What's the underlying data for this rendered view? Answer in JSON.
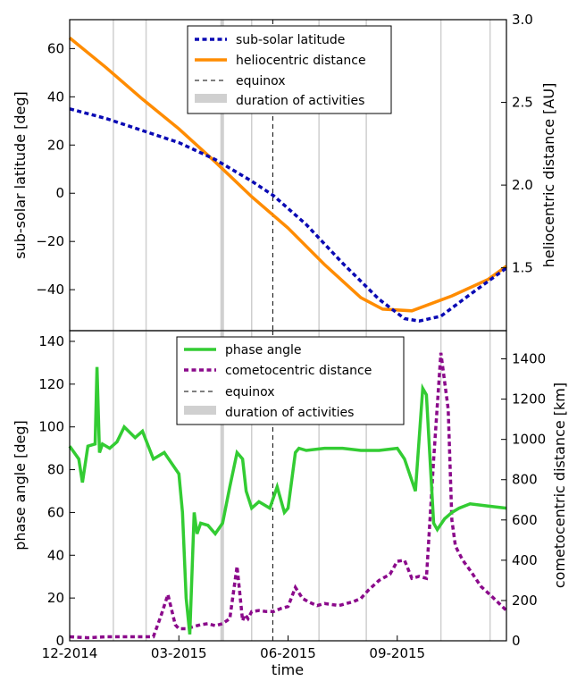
{
  "chart_data": [
    {
      "type": "line",
      "xlabel": "",
      "ylabel": "sub-solar latitude [deg]",
      "y2label": "heliocentric distance [AU]",
      "ylim": [
        -57,
        72
      ],
      "y2lim": [
        1.12,
        3.0
      ],
      "yticks": [
        "60",
        "40",
        "20",
        "0",
        "−20",
        "−40"
      ],
      "y2ticks": [
        "3.0",
        "2.5",
        "2.0",
        "1.5"
      ],
      "legend_placement": "top-center",
      "equinox_month": 5.58,
      "activity_bands": [
        [
          4.14,
          4.24
        ]
      ],
      "gridlines_months": [
        1.2,
        2.1,
        5.0,
        6.85,
        8.15,
        10.2,
        11.55
      ],
      "series": [
        {
          "name": "sub-solar latitude",
          "axis": "left",
          "color": "#0a0ab4",
          "style": "dotted",
          "x": [
            0,
            1,
            2,
            3,
            4,
            5,
            5.6,
            6.5,
            7.5,
            8.5,
            9.2,
            9.6,
            10.2,
            11,
            12
          ],
          "y": [
            35,
            31,
            26,
            21,
            14,
            5,
            -1,
            -13,
            -29,
            -44,
            -52,
            -53,
            -51,
            -42,
            -31
          ]
        },
        {
          "name": "heliocentric distance",
          "axis": "right",
          "color": "#ff8c00",
          "style": "solid",
          "x": [
            0,
            1,
            2,
            3,
            4,
            5,
            6,
            7,
            8,
            8.6,
            9.4,
            10.5,
            11.5,
            12
          ],
          "y": [
            2.89,
            2.71,
            2.52,
            2.34,
            2.14,
            1.93,
            1.74,
            1.52,
            1.32,
            1.25,
            1.24,
            1.33,
            1.43,
            1.51
          ]
        }
      ]
    },
    {
      "type": "line",
      "xlabel": "time",
      "ylabel": "phase angle [deg]",
      "y2label": "cometocentric distance [km]",
      "ylim": [
        0,
        145
      ],
      "y2lim": [
        0,
        1540
      ],
      "yticks": [
        "140",
        "120",
        "100",
        "80",
        "60",
        "40",
        "20",
        "0"
      ],
      "y2ticks": [
        "1400",
        "1200",
        "1000",
        "800",
        "600",
        "400",
        "200",
        "0"
      ],
      "xticks": [
        "12-2014",
        "03-2015",
        "06-2015",
        "09-2015"
      ],
      "xlim_months": [
        0,
        12
      ],
      "legend_placement": "top-center",
      "equinox_month": 5.58,
      "activity_bands": [
        [
          4.14,
          4.24
        ]
      ],
      "gridlines_months": [
        1.2,
        2.1,
        5.0,
        6.85,
        8.15,
        10.2,
        11.55
      ],
      "series": [
        {
          "name": "phase angle",
          "axis": "left",
          "color": "#33cc33",
          "style": "solid",
          "x": [
            0,
            0.25,
            0.35,
            0.5,
            0.7,
            0.75,
            0.82,
            0.9,
            1.1,
            1.3,
            1.5,
            1.8,
            2.0,
            2.3,
            2.6,
            3.0,
            3.1,
            3.2,
            3.3,
            3.42,
            3.5,
            3.6,
            3.8,
            4.0,
            4.2,
            4.4,
            4.6,
            4.75,
            4.85,
            5.0,
            5.2,
            5.5,
            5.7,
            5.9,
            6.0,
            6.2,
            6.3,
            6.5,
            7.0,
            7.5,
            8.0,
            8.5,
            9.0,
            9.2,
            9.5,
            9.7,
            9.8,
            10.0,
            10.1,
            10.3,
            10.5,
            10.7,
            11.0,
            11.5,
            12.0
          ],
          "y": [
            91,
            85,
            74,
            91,
            92,
            128,
            88,
            92,
            90,
            93,
            100,
            95,
            98,
            85,
            88,
            78,
            60,
            20,
            3,
            60,
            50,
            55,
            54,
            50,
            55,
            72,
            88,
            85,
            70,
            62,
            65,
            62,
            72,
            60,
            62,
            88,
            90,
            89,
            90,
            90,
            89,
            89,
            90,
            85,
            70,
            118,
            115,
            55,
            52,
            57,
            60,
            62,
            64,
            63,
            62
          ]
        },
        {
          "name": "cometocentric distance",
          "axis": "right",
          "color": "#8b0a8b",
          "style": "dotted",
          "x": [
            0,
            0.5,
            1.0,
            1.5,
            2.0,
            2.3,
            2.5,
            2.7,
            2.9,
            3.0,
            3.2,
            3.4,
            3.6,
            3.8,
            4.0,
            4.2,
            4.4,
            4.6,
            4.75,
            4.82,
            4.9,
            5.0,
            5.2,
            5.4,
            5.6,
            5.8,
            6.0,
            6.2,
            6.4,
            6.6,
            6.8,
            7.0,
            7.4,
            7.8,
            8.0,
            8.2,
            8.5,
            8.8,
            9.0,
            9.2,
            9.4,
            9.6,
            9.8,
            10.0,
            10.2,
            10.4,
            10.5,
            10.6,
            10.8,
            11.0,
            11.3,
            11.6,
            12.0
          ],
          "y": [
            20,
            15,
            20,
            20,
            20,
            20,
            120,
            230,
            80,
            60,
            60,
            70,
            80,
            85,
            75,
            85,
            110,
            370,
            100,
            130,
            110,
            145,
            150,
            145,
            145,
            160,
            170,
            265,
            210,
            190,
            175,
            185,
            175,
            195,
            210,
            250,
            300,
            330,
            395,
            400,
            310,
            320,
            310,
            900,
            1430,
            1150,
            600,
            470,
            400,
            350,
            270,
            220,
            150
          ]
        }
      ]
    }
  ],
  "legend_top": [
    "sub-solar latitude",
    "heliocentric distance",
    "equinox",
    "duration of activities"
  ],
  "legend_bottom": [
    "phase angle",
    "cometocentric distance",
    "equinox",
    "duration of activities"
  ]
}
